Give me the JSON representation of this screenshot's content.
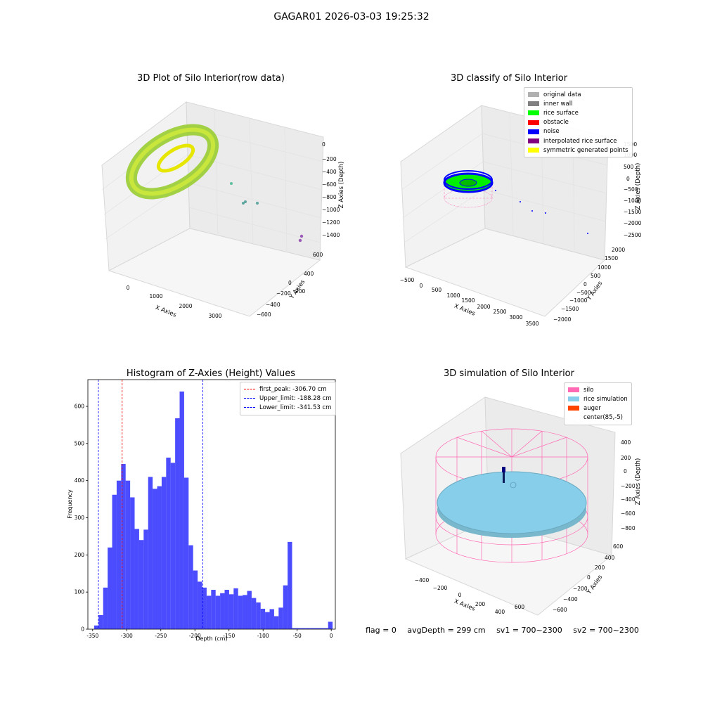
{
  "suptitle": "GAGAR01 2026-03-03 19:25:32",
  "panels": {
    "raw": {
      "title": "3D Plot of Silo Interior(row data)",
      "xlabel": "X Axies",
      "ylabel": "Y Axies",
      "zlabel": "Z Axies (Depth)",
      "xticks": [
        "0",
        "1000",
        "2000",
        "3000"
      ],
      "yticks": [
        "600",
        "400",
        "200",
        "0",
        "−200",
        "−400",
        "−600"
      ],
      "zticks": [
        "0",
        "−200",
        "−400",
        "−600",
        "−800",
        "−1000",
        "−1200",
        "−1400"
      ]
    },
    "classify": {
      "title": "3D classify of Silo Interior",
      "xlabel": "X Axies",
      "ylabel": "Y Axies",
      "zlabel": "Z Axies (Depth)",
      "xticks": [
        "−500",
        "0",
        "500",
        "1000",
        "1500",
        "2000",
        "2500",
        "3000",
        "3500"
      ],
      "yticks": [
        "2000",
        "1500",
        "1000",
        "500",
        "0",
        "−500",
        "−1000",
        "−1500",
        "−2000"
      ],
      "zticks": [
        "1500",
        "1000",
        "500",
        "0",
        "−500",
        "−1000",
        "−1500",
        "−2000",
        "−2500"
      ],
      "legend": [
        {
          "label": "original data",
          "color": "#b0b0b0"
        },
        {
          "label": "inner wall",
          "color": "#808080"
        },
        {
          "label": "rice surface",
          "color": "#00ff00"
        },
        {
          "label": "obstacle",
          "color": "#ff0000"
        },
        {
          "label": "noise",
          "color": "#0000ff"
        },
        {
          "label": "interpolated rice surface",
          "color": "#800080"
        },
        {
          "label": "symmetric generated points",
          "color": "#ffff00"
        }
      ]
    },
    "simulation": {
      "title": "3D simulation of Silo Interior",
      "xlabel": "X Axies",
      "ylabel": "Y Axies",
      "zlabel": "Z Axies (Depth)",
      "xticks": [
        "−400",
        "−200",
        "0",
        "200",
        "400",
        "600"
      ],
      "yticks": [
        "600",
        "400",
        "200",
        "0",
        "−200",
        "−400",
        "−600"
      ],
      "zticks": [
        "400",
        "200",
        "0",
        "−200",
        "−400",
        "−600",
        "−800"
      ],
      "legend": [
        {
          "label": "silo",
          "color": "#ff69b4"
        },
        {
          "label": "rice simulation",
          "color": "#87ceeb"
        },
        {
          "label": "auger",
          "color": "#ff4500"
        },
        {
          "label": "center(85,-5)",
          "color": "#ffffff"
        }
      ]
    }
  },
  "footer": {
    "flag": "flag = 0",
    "avg_depth": "avgDepth = 299 cm",
    "sv1": "sv1 = 700~2300",
    "sv2": "sv2 = 700~2300"
  },
  "chart_data": {
    "type": "bar",
    "title": "Histogram of Z-Axies (Height) Values",
    "xlabel": "Depth (cm)",
    "ylabel": "Frequency",
    "xlim": [
      -357,
      6
    ],
    "ylim": [
      0,
      672
    ],
    "xticks": [
      -350,
      -300,
      -250,
      -200,
      -150,
      -100,
      -50,
      0
    ],
    "yticks": [
      0,
      100,
      200,
      300,
      400,
      500,
      600
    ],
    "bar_color": "#0000ff",
    "bin_width": 6.6,
    "bin_starts": [
      -347.8,
      -341.2,
      -334.6,
      -328.0,
      -321.4,
      -314.8,
      -308.2,
      -301.6,
      -295.0,
      -288.4,
      -281.8,
      -275.2,
      -268.6,
      -262.0,
      -255.4,
      -248.8,
      -242.2,
      -235.6,
      -229.0,
      -222.4,
      -215.8,
      -209.2,
      -202.6,
      -196.0,
      -189.4,
      -182.8,
      -176.2,
      -169.6,
      -163.0,
      -156.4,
      -149.8,
      -143.2,
      -136.6,
      -130.0,
      -123.4,
      -116.8,
      -110.2,
      -103.6,
      -97.0,
      -90.4,
      -83.8,
      -77.2,
      -70.6,
      -64.0,
      -57.4,
      -50.8,
      -44.2,
      -37.6,
      -31.0,
      -24.4,
      -17.8,
      -11.2,
      -4.6
    ],
    "values": [
      10,
      38,
      112,
      220,
      362,
      400,
      445,
      400,
      355,
      270,
      240,
      268,
      410,
      378,
      385,
      410,
      462,
      448,
      568,
      640,
      408,
      226,
      158,
      128,
      112,
      90,
      106,
      90,
      97,
      106,
      94,
      110,
      90,
      92,
      103,
      84,
      72,
      55,
      46,
      54,
      35,
      58,
      118,
      235,
      3,
      3,
      3,
      3,
      3,
      3,
      3,
      3,
      20
    ],
    "vlines": [
      {
        "label": "first_peak: -306.70 cm",
        "x": -306.7,
        "color": "#ff0000"
      },
      {
        "label": "Upper_limit: -188.28 cm",
        "x": -188.28,
        "color": "#0000ff"
      },
      {
        "label": "Lower_limit: -341.53 cm",
        "x": -341.53,
        "color": "#0000ff"
      }
    ],
    "legend_position": "upper right"
  }
}
